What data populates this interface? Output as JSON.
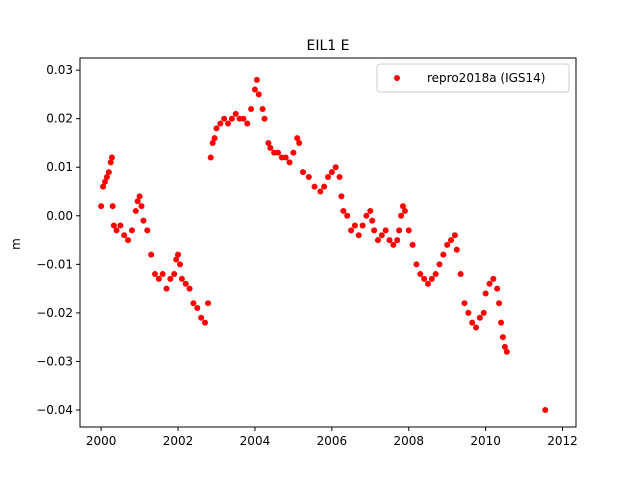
{
  "chart_data": {
    "type": "scatter",
    "title": "EIL1 E",
    "xlabel": "",
    "ylabel": "m",
    "xlim": [
      1999.45,
      2012.35
    ],
    "ylim": [
      -0.0435,
      0.0325
    ],
    "xticks": [
      2000,
      2002,
      2004,
      2006,
      2008,
      2010,
      2012
    ],
    "xtick_labels": [
      "2000",
      "2002",
      "2004",
      "2006",
      "2008",
      "2010",
      "2012"
    ],
    "yticks": [
      -0.04,
      -0.03,
      -0.02,
      -0.01,
      0.0,
      0.01,
      0.02,
      0.03
    ],
    "ytick_labels": [
      "−0.04",
      "−0.03",
      "−0.02",
      "−0.01",
      "0.00",
      "0.01",
      "0.02",
      "0.03"
    ],
    "grid": false,
    "legend_position": "top-right",
    "series": [
      {
        "name": "repro2018a (IGS14)",
        "color": "#ff0000",
        "marker": "circle",
        "points": [
          [
            2000.0,
            0.002
          ],
          [
            2000.05,
            0.006
          ],
          [
            2000.1,
            0.007
          ],
          [
            2000.15,
            0.008
          ],
          [
            2000.2,
            0.009
          ],
          [
            2000.25,
            0.011
          ],
          [
            2000.28,
            0.012
          ],
          [
            2000.3,
            0.002
          ],
          [
            2000.33,
            -0.002
          ],
          [
            2000.4,
            -0.003
          ],
          [
            2000.5,
            -0.002
          ],
          [
            2000.6,
            -0.004
          ],
          [
            2000.7,
            -0.005
          ],
          [
            2000.8,
            -0.003
          ],
          [
            2000.9,
            0.001
          ],
          [
            2000.95,
            0.003
          ],
          [
            2001.0,
            0.004
          ],
          [
            2001.05,
            0.002
          ],
          [
            2001.1,
            -0.001
          ],
          [
            2001.2,
            -0.003
          ],
          [
            2001.3,
            -0.008
          ],
          [
            2001.4,
            -0.012
          ],
          [
            2001.5,
            -0.013
          ],
          [
            2001.6,
            -0.012
          ],
          [
            2001.7,
            -0.015
          ],
          [
            2001.8,
            -0.013
          ],
          [
            2001.9,
            -0.012
          ],
          [
            2001.95,
            -0.009
          ],
          [
            2002.0,
            -0.008
          ],
          [
            2002.05,
            -0.01
          ],
          [
            2002.1,
            -0.013
          ],
          [
            2002.2,
            -0.014
          ],
          [
            2002.3,
            -0.015
          ],
          [
            2002.4,
            -0.018
          ],
          [
            2002.5,
            -0.019
          ],
          [
            2002.6,
            -0.021
          ],
          [
            2002.7,
            -0.022
          ],
          [
            2002.78,
            -0.018
          ],
          [
            2002.85,
            0.012
          ],
          [
            2002.9,
            0.015
          ],
          [
            2002.95,
            0.016
          ],
          [
            2003.0,
            0.018
          ],
          [
            2003.1,
            0.019
          ],
          [
            2003.2,
            0.02
          ],
          [
            2003.3,
            0.019
          ],
          [
            2003.4,
            0.02
          ],
          [
            2003.5,
            0.021
          ],
          [
            2003.6,
            0.02
          ],
          [
            2003.7,
            0.02
          ],
          [
            2003.8,
            0.019
          ],
          [
            2003.9,
            0.022
          ],
          [
            2004.0,
            0.026
          ],
          [
            2004.05,
            0.028
          ],
          [
            2004.1,
            0.025
          ],
          [
            2004.2,
            0.022
          ],
          [
            2004.25,
            0.02
          ],
          [
            2004.35,
            0.015
          ],
          [
            2004.4,
            0.014
          ],
          [
            2004.5,
            0.013
          ],
          [
            2004.6,
            0.013
          ],
          [
            2004.7,
            0.012
          ],
          [
            2004.8,
            0.012
          ],
          [
            2004.9,
            0.011
          ],
          [
            2005.0,
            0.013
          ],
          [
            2005.1,
            0.016
          ],
          [
            2005.15,
            0.015
          ],
          [
            2005.25,
            0.009
          ],
          [
            2005.4,
            0.008
          ],
          [
            2005.55,
            0.006
          ],
          [
            2005.7,
            0.005
          ],
          [
            2005.8,
            0.006
          ],
          [
            2005.9,
            0.008
          ],
          [
            2006.0,
            0.009
          ],
          [
            2006.1,
            0.01
          ],
          [
            2006.2,
            0.008
          ],
          [
            2006.25,
            0.004
          ],
          [
            2006.3,
            0.001
          ],
          [
            2006.4,
            0.0
          ],
          [
            2006.5,
            -0.003
          ],
          [
            2006.6,
            -0.002
          ],
          [
            2006.7,
            -0.004
          ],
          [
            2006.8,
            -0.002
          ],
          [
            2006.9,
            0.0
          ],
          [
            2007.0,
            0.001
          ],
          [
            2007.05,
            -0.001
          ],
          [
            2007.1,
            -0.003
          ],
          [
            2007.2,
            -0.005
          ],
          [
            2007.3,
            -0.004
          ],
          [
            2007.4,
            -0.003
          ],
          [
            2007.5,
            -0.005
          ],
          [
            2007.6,
            -0.006
          ],
          [
            2007.7,
            -0.005
          ],
          [
            2007.75,
            -0.003
          ],
          [
            2007.8,
            0.0
          ],
          [
            2007.85,
            0.002
          ],
          [
            2007.9,
            0.001
          ],
          [
            2008.0,
            -0.003
          ],
          [
            2008.1,
            -0.006
          ],
          [
            2008.2,
            -0.01
          ],
          [
            2008.3,
            -0.012
          ],
          [
            2008.4,
            -0.013
          ],
          [
            2008.5,
            -0.014
          ],
          [
            2008.6,
            -0.013
          ],
          [
            2008.7,
            -0.012
          ],
          [
            2008.8,
            -0.01
          ],
          [
            2008.9,
            -0.008
          ],
          [
            2009.0,
            -0.006
          ],
          [
            2009.1,
            -0.005
          ],
          [
            2009.2,
            -0.004
          ],
          [
            2009.25,
            -0.007
          ],
          [
            2009.35,
            -0.012
          ],
          [
            2009.45,
            -0.018
          ],
          [
            2009.55,
            -0.02
          ],
          [
            2009.65,
            -0.022
          ],
          [
            2009.75,
            -0.023
          ],
          [
            2009.85,
            -0.021
          ],
          [
            2009.95,
            -0.02
          ],
          [
            2010.0,
            -0.016
          ],
          [
            2010.1,
            -0.014
          ],
          [
            2010.2,
            -0.013
          ],
          [
            2010.3,
            -0.015
          ],
          [
            2010.35,
            -0.018
          ],
          [
            2010.4,
            -0.022
          ],
          [
            2010.45,
            -0.025
          ],
          [
            2010.5,
            -0.027
          ],
          [
            2010.55,
            -0.028
          ],
          [
            2011.55,
            -0.04
          ]
        ]
      }
    ]
  }
}
